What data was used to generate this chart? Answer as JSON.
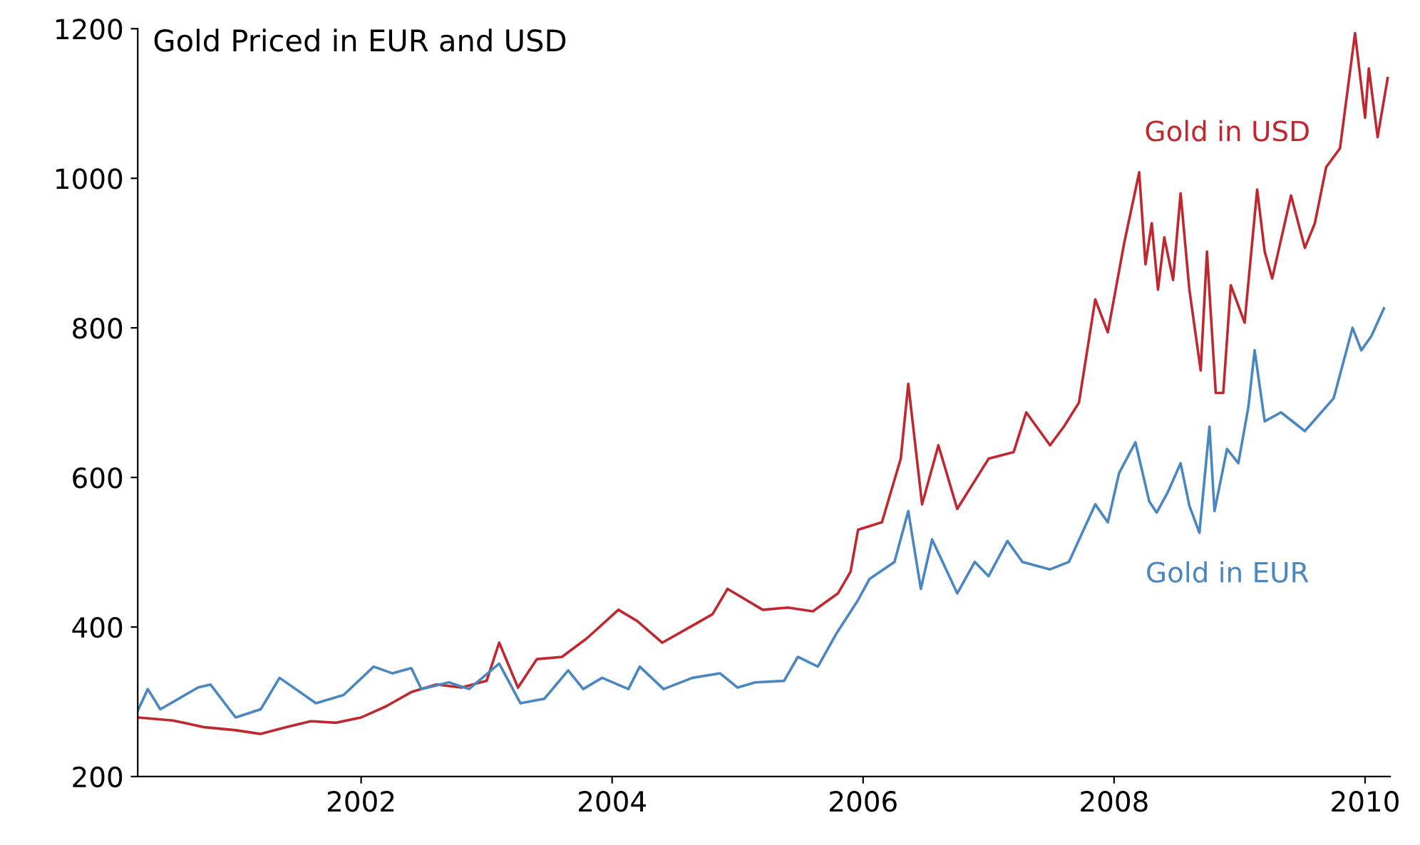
{
  "chart_data": {
    "type": "line",
    "title": "Gold Priced in EUR and USD",
    "xlim": [
      2000.22,
      2010.2
    ],
    "xticks": [
      2002,
      2004,
      2006,
      2008,
      2010
    ],
    "ylim": [
      200,
      1200
    ],
    "yticks": [
      200,
      400,
      600,
      800,
      1000,
      1200
    ],
    "grid": false,
    "legend": false,
    "line_style": "solid",
    "series": [
      {
        "name": "Gold in USD",
        "color": "#c0282f",
        "x": [
          2000.22,
          2000.5,
          2000.75,
          2001.0,
          2001.2,
          2001.4,
          2001.6,
          2001.8,
          2002.0,
          2002.2,
          2002.4,
          2002.6,
          2002.8,
          2003.0,
          2003.1,
          2003.25,
          2003.4,
          2003.6,
          2003.8,
          2004.05,
          2004.2,
          2004.4,
          2004.6,
          2004.8,
          2004.92,
          2005.2,
          2005.4,
          2005.6,
          2005.8,
          2005.9,
          2005.96,
          2006.15,
          2006.3,
          2006.36,
          2006.47,
          2006.6,
          2006.75,
          2007.0,
          2007.2,
          2007.3,
          2007.49,
          2007.6,
          2007.72,
          2007.85,
          2007.95,
          2008.08,
          2008.2,
          2008.25,
          2008.3,
          2008.35,
          2008.4,
          2008.47,
          2008.53,
          2008.6,
          2008.69,
          2008.74,
          2008.81,
          2008.87,
          2008.93,
          2009.04,
          2009.14,
          2009.2,
          2009.26,
          2009.41,
          2009.52,
          2009.6,
          2009.69,
          2009.8,
          2009.92,
          2010.0,
          2010.03,
          2010.1,
          2010.18
        ],
        "values": [
          279,
          275,
          266,
          262,
          257,
          266,
          274,
          272,
          279,
          294,
          313,
          323,
          319,
          328,
          379,
          319,
          357,
          360,
          385,
          423,
          408,
          379,
          398,
          417,
          451,
          423,
          426,
          421,
          445,
          474,
          530,
          540,
          625,
          725,
          564,
          643,
          558,
          625,
          634,
          687,
          643,
          668,
          700,
          838,
          794,
          913,
          1008,
          885,
          940,
          851,
          921,
          864,
          980,
          851,
          743,
          902,
          713,
          713,
          857,
          807,
          985,
          902,
          866,
          977,
          907,
          940,
          1015,
          1040,
          1194,
          1081,
          1147,
          1055,
          1134
        ]
      },
      {
        "name": "Gold in EUR",
        "color": "#4a86c0",
        "x": [
          2000.22,
          2000.3,
          2000.4,
          2000.7,
          2000.8,
          2001.0,
          2001.2,
          2001.35,
          2001.64,
          2001.86,
          2002.1,
          2002.25,
          2002.4,
          2002.48,
          2002.7,
          2002.86,
          2003.1,
          2003.27,
          2003.46,
          2003.65,
          2003.77,
          2003.92,
          2004.13,
          2004.22,
          2004.41,
          2004.64,
          2004.86,
          2005.0,
          2005.14,
          2005.37,
          2005.48,
          2005.64,
          2005.79,
          2005.96,
          2006.05,
          2006.25,
          2006.36,
          2006.46,
          2006.55,
          2006.75,
          2006.89,
          2007.0,
          2007.15,
          2007.27,
          2007.49,
          2007.64,
          2007.85,
          2007.95,
          2008.04,
          2008.17,
          2008.28,
          2008.34,
          2008.43,
          2008.53,
          2008.6,
          2008.68,
          2008.76,
          2008.8,
          2008.9,
          2008.99,
          2009.07,
          2009.12,
          2009.2,
          2009.33,
          2009.52,
          2009.75,
          2009.9,
          2009.97,
          2010.05,
          2010.15
        ],
        "values": [
          288,
          317,
          290,
          319,
          323,
          279,
          290,
          332,
          298,
          309,
          347,
          338,
          345,
          317,
          326,
          317,
          351,
          298,
          304,
          342,
          317,
          332,
          317,
          347,
          317,
          332,
          338,
          319,
          326,
          328,
          360,
          347,
          392,
          436,
          464,
          487,
          555,
          451,
          517,
          445,
          487,
          468,
          515,
          487,
          477,
          487,
          564,
          540,
          606,
          647,
          568,
          553,
          581,
          619,
          562,
          526,
          668,
          555,
          638,
          619,
          694,
          770,
          675,
          687,
          662,
          706,
          800,
          770,
          789,
          826
        ]
      }
    ]
  }
}
